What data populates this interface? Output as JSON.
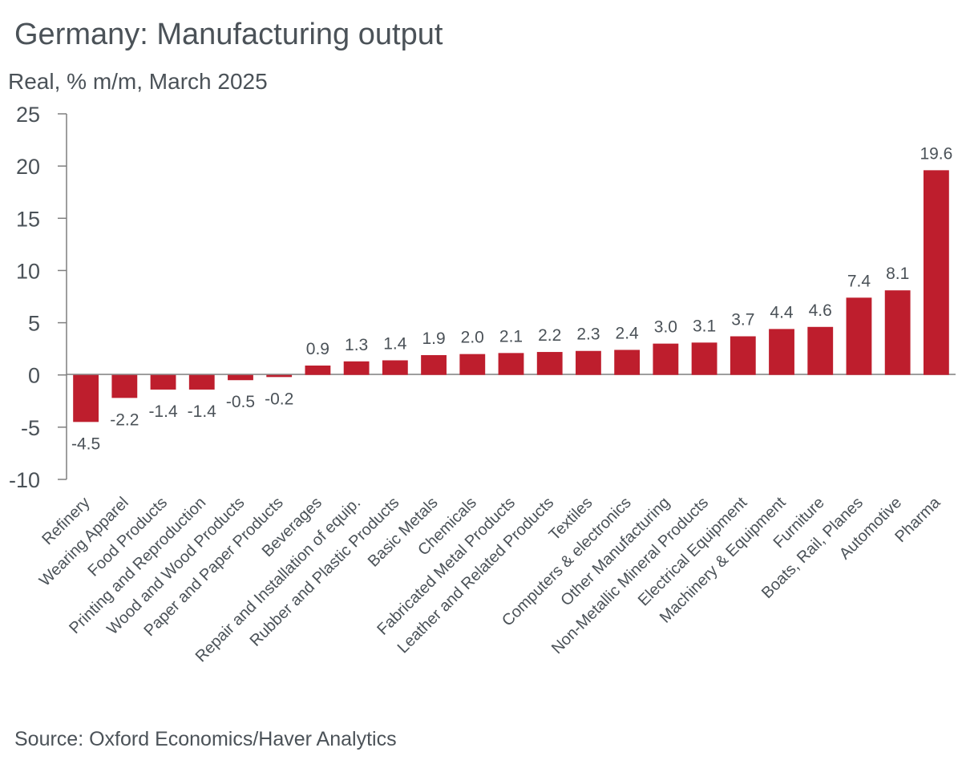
{
  "chart_data": {
    "type": "bar",
    "title": "Germany: Manufacturing output",
    "subtitle": "Real, % m/m, March 2025",
    "source": "Source: Oxford Economics/Haver Analytics",
    "xlabel": "",
    "ylabel": "",
    "ylim": [
      -10,
      25
    ],
    "yticks": [
      25,
      20,
      15,
      10,
      5,
      0,
      -5,
      -10
    ],
    "bar_color": "#be1e2d",
    "categories": [
      "Refinery",
      "Wearing Apparel",
      "Food Products",
      "Printing and Reproduction",
      "Wood and Wood Products",
      "Paper and Paper Products",
      "Beverages",
      "Repair and Installation of equip.",
      "Rubber and Plastic Products",
      "Basic Metals",
      "Chemicals",
      "Fabricated Metal Products",
      "Leather and Related Products",
      "Textiles",
      "Computers & electronics",
      "Other Manufacturing",
      "Non-Metallic Mineral Products",
      "Electrical Equipment",
      "Machinery & Equipment",
      "Furniture",
      "Boats, Rail, Planes",
      "Automotive",
      "Pharma"
    ],
    "values": [
      -4.5,
      -2.2,
      -1.4,
      -1.4,
      -0.5,
      -0.2,
      0.9,
      1.3,
      1.4,
      1.9,
      2.0,
      2.1,
      2.2,
      2.3,
      2.4,
      3.0,
      3.1,
      3.7,
      4.4,
      4.6,
      7.4,
      8.1,
      19.6
    ],
    "data_labels": [
      "-4.5",
      "-2.2",
      "-1.4",
      "-1.4",
      "-0.5",
      "-0.2",
      "0.9",
      "1.3",
      "1.4",
      "1.9",
      "2.0",
      "2.1",
      "2.2",
      "2.3",
      "2.4",
      "3.0",
      "3.1",
      "3.7",
      "4.4",
      "4.6",
      "7.4",
      "8.1",
      "19.6"
    ]
  }
}
